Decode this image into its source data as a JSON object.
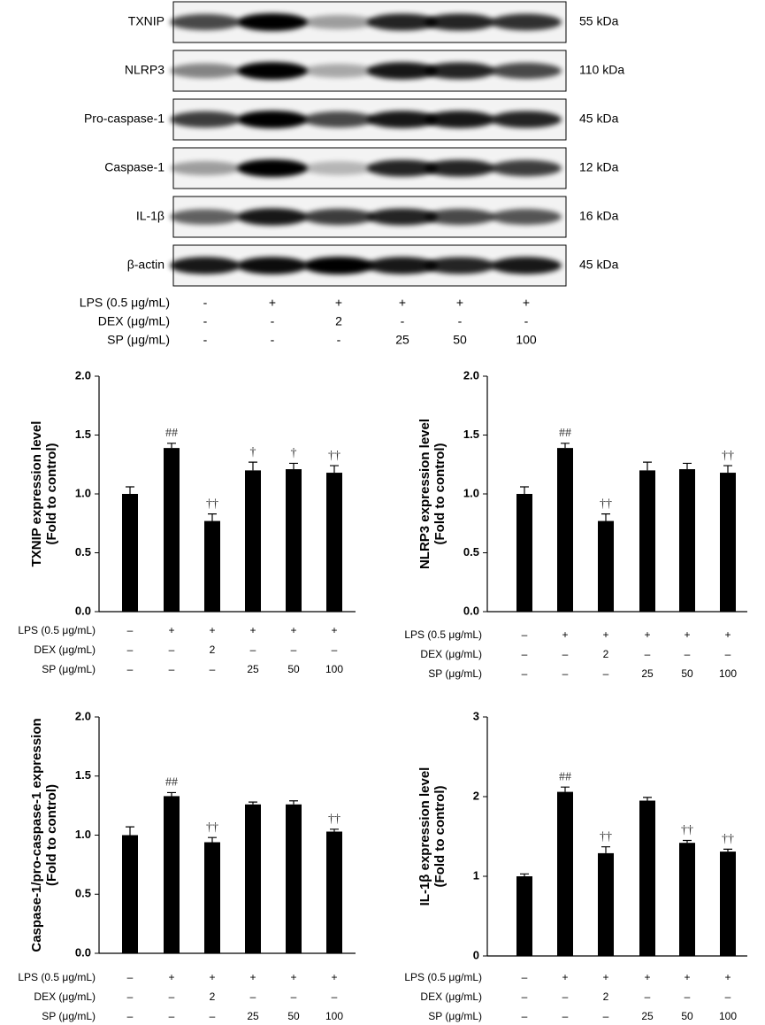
{
  "blot": {
    "rows": [
      {
        "label": "TXNIP",
        "size": "55 kDa"
      },
      {
        "label": "NLRP3",
        "size": "110 kDa"
      },
      {
        "label": "Pro-caspase-1",
        "size": "45 kDa"
      },
      {
        "label": "Caspase-1",
        "size": "12 kDa"
      },
      {
        "label": "IL-1β",
        "size": "16 kDa"
      },
      {
        "label": "β-actin",
        "size": "45 kDa"
      }
    ],
    "treatments": [
      {
        "label": "LPS (0.5 μg/mL)",
        "values": [
          "-",
          "+",
          "+",
          "+",
          "+",
          "+"
        ]
      },
      {
        "label": "DEX (μg/mL)",
        "values": [
          "-",
          "-",
          "2",
          "-",
          "-",
          "-"
        ]
      },
      {
        "label": "SP (μg/mL)",
        "values": [
          "-",
          "-",
          "-",
          "25",
          "50",
          "100"
        ]
      }
    ]
  },
  "chart_data": [
    {
      "type": "bar",
      "ylabel": [
        "TXNIP expression level",
        "(Fold to control)"
      ],
      "values": [
        1.0,
        1.39,
        0.77,
        1.2,
        1.21,
        1.18
      ],
      "errors": [
        0.06,
        0.04,
        0.06,
        0.07,
        0.05,
        0.06
      ],
      "annotations": [
        null,
        "##",
        "††",
        "†",
        "†",
        "††"
      ],
      "color": "#000000",
      "ylim": [
        0,
        2
      ],
      "yticks": [
        {
          "value": 0,
          "label": "0.0"
        },
        0.5,
        {
          "value": 1,
          "label": "1.0"
        },
        1.5,
        {
          "value": 2,
          "label": "2.0"
        }
      ],
      "treatments": [
        {
          "label": "LPS (0.5 μg/mL)",
          "values": [
            "–",
            "+",
            "+",
            "+",
            "+",
            "+"
          ]
        },
        {
          "label": "DEX (μg/mL)",
          "values": [
            "–",
            "–",
            "2",
            "–",
            "–",
            "–"
          ]
        },
        {
          "label": "SP (μg/mL)",
          "values": [
            "–",
            "–",
            "–",
            "25",
            "50",
            "100"
          ]
        }
      ]
    },
    {
      "type": "bar",
      "ylabel": [
        "NLRP3 expression level",
        "(Fold to control)"
      ],
      "values": [
        1.0,
        1.39,
        0.77,
        1.2,
        1.21,
        1.18
      ],
      "errors": [
        0.06,
        0.04,
        0.06,
        0.07,
        0.05,
        0.06
      ],
      "annotations": [
        null,
        "##",
        "††",
        null,
        null,
        "††"
      ],
      "color": "#000000",
      "ylim": [
        0,
        2
      ],
      "yticks": [
        {
          "value": 0,
          "label": "0.0"
        },
        0.5,
        {
          "value": 1,
          "label": "1.0"
        },
        1.5,
        {
          "value": 2,
          "label": "2.0"
        }
      ],
      "treatments": [
        {
          "label": "LPS (0.5 μg/mL)",
          "values": [
            "–",
            "+",
            "+",
            "+",
            "+",
            "+"
          ]
        },
        {
          "label": "DEX (μg/mL)",
          "values": [
            "–",
            "–",
            "2",
            "–",
            "–",
            "–"
          ]
        },
        {
          "label": "SP (μg/mL)",
          "values": [
            "–",
            "–",
            "–",
            "25",
            "50",
            "100"
          ]
        }
      ]
    },
    {
      "type": "bar",
      "ylabel": [
        "Caspase-1/pro-caspase-1 expression",
        "(Fold to control)"
      ],
      "values": [
        1.0,
        1.33,
        0.94,
        1.26,
        1.26,
        1.03
      ],
      "errors": [
        0.07,
        0.03,
        0.04,
        0.02,
        0.03,
        0.02
      ],
      "annotations": [
        null,
        "##",
        "††",
        null,
        null,
        "††"
      ],
      "color": "#000000",
      "ylim": [
        0,
        2
      ],
      "yticks": [
        {
          "value": 0,
          "label": "0.0"
        },
        0.5,
        {
          "value": 1,
          "label": "1.0"
        },
        1.5,
        {
          "value": 2,
          "label": "2.0"
        }
      ],
      "treatments": [
        {
          "label": "LPS (0.5 μg/mL)",
          "values": [
            "–",
            "+",
            "+",
            "+",
            "+",
            "+"
          ]
        },
        {
          "label": "DEX (μg/mL)",
          "values": [
            "–",
            "–",
            "2",
            "–",
            "–",
            "–"
          ]
        },
        {
          "label": "SP (μg/mL)",
          "values": [
            "–",
            "–",
            "–",
            "25",
            "50",
            "100"
          ]
        }
      ]
    },
    {
      "type": "bar",
      "ylabel": [
        "IL-1β expression level",
        "(Fold to control)"
      ],
      "values": [
        1.0,
        2.06,
        1.29,
        1.95,
        1.42,
        1.31
      ],
      "errors": [
        0.03,
        0.06,
        0.08,
        0.04,
        0.03,
        0.03
      ],
      "annotations": [
        null,
        "##",
        "††",
        null,
        "††",
        "††"
      ],
      "color": "#000000",
      "ylim": [
        0,
        3
      ],
      "yticks": [
        0,
        1,
        2,
        3
      ],
      "treatments": [
        {
          "label": "LPS (0.5 μg/mL)",
          "values": [
            "–",
            "+",
            "+",
            "+",
            "+",
            "+"
          ]
        },
        {
          "label": "DEX (μg/mL)",
          "values": [
            "–",
            "–",
            "2",
            "–",
            "–",
            "–"
          ]
        },
        {
          "label": "SP (μg/mL)",
          "values": [
            "–",
            "–",
            "–",
            "25",
            "50",
            "100"
          ]
        }
      ]
    }
  ]
}
